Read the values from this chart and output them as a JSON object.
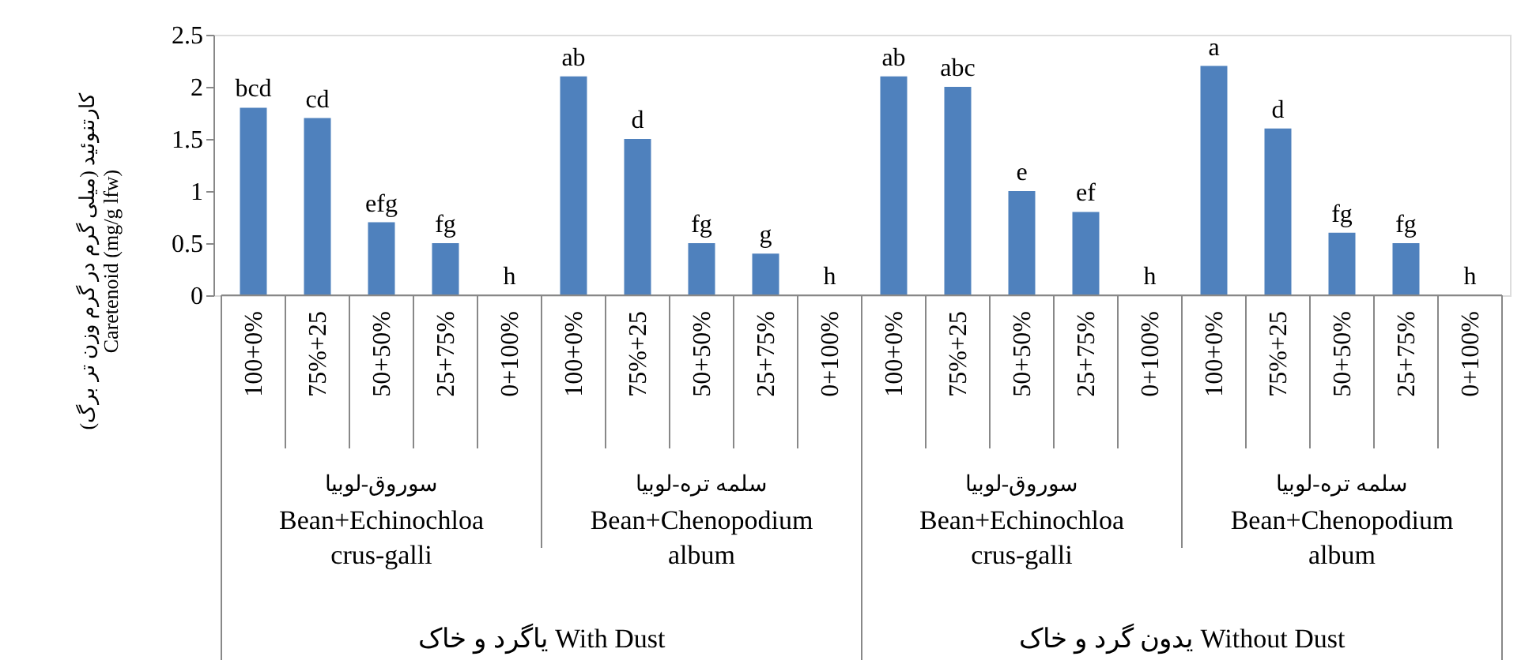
{
  "chart_data": {
    "type": "bar",
    "categories": [
      "100+0%",
      "75%+25",
      "50+50%",
      "25+75%",
      "0+100%",
      "100+0%",
      "75%+25",
      "50+50%",
      "25+75%",
      "0+100%",
      "100+0%",
      "75%+25",
      "50+50%",
      "25+75%",
      "0+100%",
      "100+0%",
      "75%+25",
      "50+50%",
      "25+75%",
      "0+100%"
    ],
    "values": [
      1.8,
      1.7,
      0.7,
      0.5,
      0,
      2.1,
      1.5,
      0.5,
      0.4,
      0,
      2.1,
      2.0,
      1.0,
      0.8,
      0,
      2.2,
      1.6,
      0.6,
      0.5,
      0
    ],
    "value_labels": [
      "bcd",
      "cd",
      "efg",
      "fg",
      "h",
      "ab",
      "d",
      "fg",
      "g",
      "h",
      "ab",
      "abc",
      "e",
      "ef",
      "h",
      "a",
      "d",
      "fg",
      "fg",
      "h"
    ],
    "color": "#4f81bd",
    "ylabel": "کارتنوئید (میلی گرم در گرم وزن تر برگ)\nCaretenoid (mg/g lfw)",
    "ylim": [
      0,
      2.5
    ],
    "yticks": [
      0,
      0.5,
      1,
      1.5,
      2,
      2.5
    ],
    "grid": false,
    "annotations": [
      "سوروق-لوبیا",
      "Bean+Echinochloa crus-galli",
      "سلمه تره-لوبیا",
      "Bean+Chenopodium album",
      "سوروق-لوبیا",
      "Bean+Echinochloa crus-galli",
      "سلمه تره-لوبیا",
      "Bean+Chenopodium album",
      "یاگرد و خاک With Dust",
      "یدون گرد و خاک Without Dust"
    ]
  }
}
